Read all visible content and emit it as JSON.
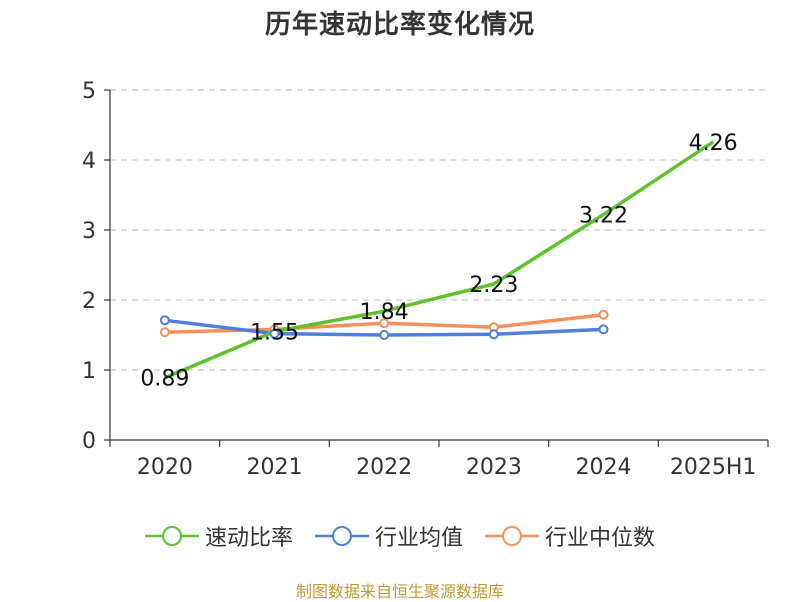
{
  "chart_data": {
    "type": "line",
    "title": "历年速动比率变化情况",
    "categories": [
      "2020",
      "2021",
      "2022",
      "2023",
      "2024",
      "2025H1"
    ],
    "ylim": [
      0,
      5
    ],
    "yticks": [
      "0",
      "1",
      "2",
      "3",
      "4",
      "5"
    ],
    "grid": "horizontal-dashed",
    "legend_placement": "bottom",
    "series": [
      {
        "name": "速动比率",
        "color": "#5ec22d",
        "values": [
          0.89,
          1.55,
          1.84,
          2.23,
          3.22,
          4.26
        ],
        "labels": [
          "0.89",
          "1.55",
          "1.84",
          "2.23",
          "3.22",
          "4.26"
        ]
      },
      {
        "name": "行业均值",
        "color": "#4f7fdc",
        "values": [
          1.71,
          1.52,
          1.5,
          1.51,
          1.58,
          null
        ]
      },
      {
        "name": "行业中位数",
        "color": "#f5905b",
        "values": [
          1.54,
          1.58,
          1.67,
          1.61,
          1.79,
          null
        ]
      }
    ]
  },
  "footer": {
    "source": "制图数据来自恒生聚源数据库"
  }
}
